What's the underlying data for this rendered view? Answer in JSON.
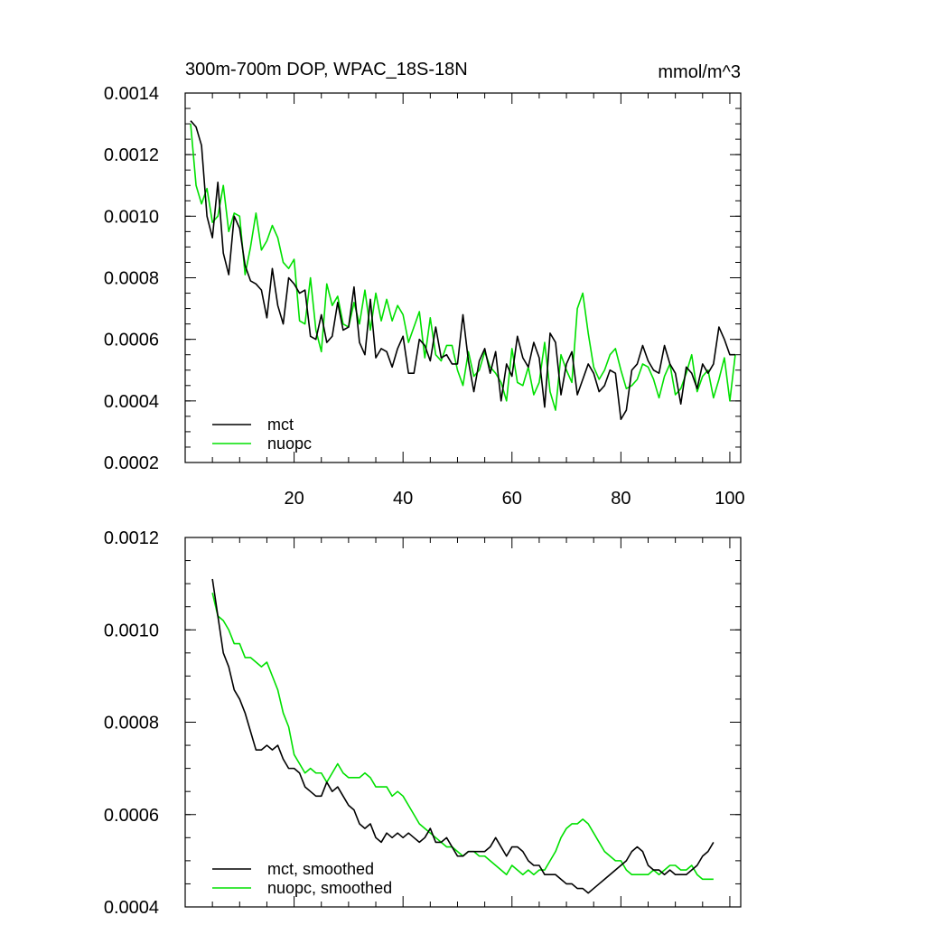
{
  "chart_data": [
    {
      "type": "line",
      "title": "300m-700m DOP, WPAC_18S-18N",
      "units": "mmol/m^3",
      "xlabel": "",
      "ylabel": "",
      "xlim": [
        0,
        102
      ],
      "ylim": [
        0.0002,
        0.0014
      ],
      "xticks": [
        20,
        40,
        60,
        80,
        100
      ],
      "xtick_labels": [
        "20",
        "40",
        "60",
        "80",
        "100"
      ],
      "yticks": [
        0.0002,
        0.0004,
        0.0006,
        0.0008,
        0.001,
        0.0012,
        0.0014
      ],
      "ytick_labels": [
        "0.0002",
        "0.0004",
        "0.0006",
        "0.0008",
        "0.0010",
        "0.0012",
        "0.0014"
      ],
      "grid": false,
      "legend_position": "bottom-left",
      "x": [
        1,
        2,
        3,
        4,
        5,
        6,
        7,
        8,
        9,
        10,
        11,
        12,
        13,
        14,
        15,
        16,
        17,
        18,
        19,
        20,
        21,
        22,
        23,
        24,
        25,
        26,
        27,
        28,
        29,
        30,
        31,
        32,
        33,
        34,
        35,
        36,
        37,
        38,
        39,
        40,
        41,
        42,
        43,
        44,
        45,
        46,
        47,
        48,
        49,
        50,
        51,
        52,
        53,
        54,
        55,
        56,
        57,
        58,
        59,
        60,
        61,
        62,
        63,
        64,
        65,
        66,
        67,
        68,
        69,
        70,
        71,
        72,
        73,
        74,
        75,
        76,
        77,
        78,
        79,
        80,
        81,
        82,
        83,
        84,
        85,
        86,
        87,
        88,
        89,
        90,
        91,
        92,
        93,
        94,
        95,
        96,
        97,
        98,
        99,
        100,
        101
      ],
      "series": [
        {
          "name": "mct",
          "color": "#000000",
          "values": [
            0.00131,
            0.00129,
            0.00123,
            0.001,
            0.00093,
            0.00111,
            0.00088,
            0.00081,
            0.001,
            0.00096,
            0.00084,
            0.00079,
            0.00078,
            0.00076,
            0.00067,
            0.00083,
            0.00071,
            0.00065,
            0.0008,
            0.00078,
            0.00075,
            0.00076,
            0.00061,
            0.0006,
            0.00068,
            0.00059,
            0.00061,
            0.00072,
            0.00063,
            0.00064,
            0.00077,
            0.00059,
            0.00055,
            0.00073,
            0.00054,
            0.00057,
            0.00056,
            0.00051,
            0.00057,
            0.00061,
            0.00049,
            0.00049,
            0.0006,
            0.00058,
            0.00053,
            0.00064,
            0.00054,
            0.00055,
            0.00052,
            0.00052,
            0.00068,
            0.00053,
            0.00043,
            0.00053,
            0.00057,
            0.00049,
            0.00056,
            0.0004,
            0.00052,
            0.00048,
            0.00061,
            0.00054,
            0.00051,
            0.00059,
            0.00054,
            0.00038,
            0.00062,
            0.00059,
            0.00042,
            0.00052,
            0.00056,
            0.00042,
            0.00047,
            0.00052,
            0.00049,
            0.00043,
            0.00045,
            0.0005,
            0.00049,
            0.00034,
            0.00037,
            0.0005,
            0.00052,
            0.00058,
            0.00053,
            0.0005,
            0.00049,
            0.00058,
            0.00052,
            0.00049,
            0.00039,
            0.00051,
            0.00049,
            0.00044,
            0.00052,
            0.00049,
            0.00052,
            0.00064,
            0.0006,
            0.00055,
            0.00055
          ]
        },
        {
          "name": "nuopc",
          "color": "#00e000",
          "values": [
            0.0013,
            0.0011,
            0.00104,
            0.00109,
            0.00098,
            0.001,
            0.0011,
            0.00095,
            0.00101,
            0.001,
            0.00081,
            0.0009,
            0.00101,
            0.00089,
            0.00092,
            0.00097,
            0.00093,
            0.00085,
            0.00083,
            0.00086,
            0.00066,
            0.00065,
            0.0008,
            0.00063,
            0.00056,
            0.00078,
            0.00071,
            0.00074,
            0.00065,
            0.00064,
            0.00072,
            0.00065,
            0.00076,
            0.00063,
            0.00075,
            0.00066,
            0.00073,
            0.00066,
            0.00071,
            0.00068,
            0.00059,
            0.00064,
            0.00069,
            0.00054,
            0.00067,
            0.00055,
            0.00053,
            0.00058,
            0.00058,
            0.0005,
            0.00045,
            0.00056,
            0.00048,
            0.0005,
            0.00056,
            0.00051,
            0.00049,
            0.00046,
            0.0004,
            0.00057,
            0.00046,
            0.00045,
            0.00051,
            0.00042,
            0.00046,
            0.00059,
            0.00043,
            0.00037,
            0.00055,
            0.0005,
            0.00046,
            0.0007,
            0.00075,
            0.00062,
            0.00051,
            0.00047,
            0.0005,
            0.00055,
            0.00057,
            0.0005,
            0.00044,
            0.00045,
            0.00047,
            0.00052,
            0.00051,
            0.00047,
            0.00041,
            0.00048,
            0.00052,
            0.00042,
            0.00044,
            0.00049,
            0.00055,
            0.00043,
            0.00048,
            0.0005,
            0.00041,
            0.00047,
            0.00054,
            0.0004,
            0.00055
          ]
        }
      ]
    },
    {
      "type": "line",
      "title": "",
      "xlabel": "",
      "ylabel": "",
      "xlim": [
        0,
        102
      ],
      "ylim": [
        0.0004,
        0.0012
      ],
      "xticks": [
        20,
        40,
        60,
        80,
        100
      ],
      "yticks": [
        0.0004,
        0.0006,
        0.0008,
        0.001,
        0.0012
      ],
      "ytick_labels": [
        "0.0004",
        "0.0006",
        "0.0008",
        "0.0010",
        "0.0012"
      ],
      "grid": false,
      "legend_position": "bottom-left",
      "x": [
        5,
        6,
        7,
        8,
        9,
        10,
        11,
        12,
        13,
        14,
        15,
        16,
        17,
        18,
        19,
        20,
        21,
        22,
        23,
        24,
        25,
        26,
        27,
        28,
        29,
        30,
        31,
        32,
        33,
        34,
        35,
        36,
        37,
        38,
        39,
        40,
        41,
        42,
        43,
        44,
        45,
        46,
        47,
        48,
        49,
        50,
        51,
        52,
        53,
        54,
        55,
        56,
        57,
        58,
        59,
        60,
        61,
        62,
        63,
        64,
        65,
        66,
        67,
        68,
        69,
        70,
        71,
        72,
        73,
        74,
        75,
        76,
        77,
        78,
        79,
        80,
        81,
        82,
        83,
        84,
        85,
        86,
        87,
        88,
        89,
        90,
        91,
        92,
        93,
        94,
        95,
        96,
        97
      ],
      "series": [
        {
          "name": "mct, smoothed",
          "color": "#000000",
          "values": [
            0.00111,
            0.00103,
            0.00095,
            0.00092,
            0.00087,
            0.00085,
            0.00082,
            0.00078,
            0.00074,
            0.00074,
            0.00075,
            0.00074,
            0.00075,
            0.00072,
            0.0007,
            0.0007,
            0.00069,
            0.00066,
            0.00065,
            0.00064,
            0.00064,
            0.00067,
            0.00065,
            0.00066,
            0.00064,
            0.00062,
            0.00061,
            0.00058,
            0.00057,
            0.00058,
            0.00055,
            0.00054,
            0.00056,
            0.00055,
            0.00056,
            0.00055,
            0.00056,
            0.00055,
            0.00054,
            0.00055,
            0.00057,
            0.00054,
            0.00054,
            0.00055,
            0.00053,
            0.00051,
            0.00051,
            0.00052,
            0.00052,
            0.00052,
            0.00052,
            0.00053,
            0.00055,
            0.00053,
            0.00051,
            0.00053,
            0.00053,
            0.00052,
            0.0005,
            0.00049,
            0.00049,
            0.00047,
            0.00047,
            0.00047,
            0.00046,
            0.00045,
            0.00045,
            0.00044,
            0.00044,
            0.00043,
            0.00044,
            0.00045,
            0.00046,
            0.00047,
            0.00048,
            0.00049,
            0.0005,
            0.00052,
            0.00053,
            0.00052,
            0.00049,
            0.00048,
            0.00048,
            0.00047,
            0.00048,
            0.00047,
            0.00047,
            0.00047,
            0.00048,
            0.00049,
            0.00051,
            0.00052,
            0.00054
          ]
        },
        {
          "name": "nuopc, smoothed",
          "color": "#00e000",
          "values": [
            0.00108,
            0.00103,
            0.00102,
            0.001,
            0.00097,
            0.00097,
            0.00094,
            0.00094,
            0.00093,
            0.00092,
            0.00093,
            0.0009,
            0.00087,
            0.00082,
            0.00079,
            0.00073,
            0.00071,
            0.00069,
            0.0007,
            0.00069,
            0.00069,
            0.00067,
            0.00069,
            0.00071,
            0.00069,
            0.00068,
            0.00068,
            0.00068,
            0.00069,
            0.00068,
            0.00066,
            0.00066,
            0.00066,
            0.00064,
            0.00065,
            0.00064,
            0.00062,
            0.0006,
            0.00058,
            0.00057,
            0.00056,
            0.00055,
            0.00054,
            0.00053,
            0.00053,
            0.00052,
            0.00051,
            0.00052,
            0.00052,
            0.00051,
            0.00051,
            0.0005,
            0.00049,
            0.00048,
            0.00047,
            0.00049,
            0.00048,
            0.00047,
            0.00048,
            0.00047,
            0.00048,
            0.00048,
            0.0005,
            0.00052,
            0.00055,
            0.00057,
            0.00058,
            0.00058,
            0.00059,
            0.00058,
            0.00056,
            0.00054,
            0.00052,
            0.00051,
            0.0005,
            0.0005,
            0.00048,
            0.00047,
            0.00047,
            0.00047,
            0.00047,
            0.00048,
            0.00047,
            0.00048,
            0.00049,
            0.00049,
            0.00048,
            0.00048,
            0.00049,
            0.00047,
            0.00046,
            0.00046,
            0.00046
          ]
        }
      ]
    }
  ]
}
